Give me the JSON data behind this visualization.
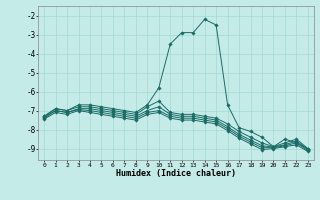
{
  "xlabel": "Humidex (Indice chaleur)",
  "bg_color": "#c5ebe8",
  "grid_color": "#9dd4d0",
  "line_color": "#1a6b65",
  "xlim": [
    -0.5,
    23.5
  ],
  "ylim": [
    -9.6,
    -1.5
  ],
  "yticks": [
    -2,
    -3,
    -4,
    -5,
    -6,
    -7,
    -8,
    -9
  ],
  "xticks": [
    0,
    1,
    2,
    3,
    4,
    5,
    6,
    7,
    8,
    9,
    10,
    11,
    12,
    13,
    14,
    15,
    16,
    17,
    18,
    19,
    20,
    21,
    22,
    23
  ],
  "lines": [
    [
      -7.3,
      -6.9,
      -7.0,
      -6.7,
      -6.7,
      -6.8,
      -6.9,
      -7.0,
      -7.1,
      -6.7,
      -5.8,
      -3.5,
      -2.9,
      -2.9,
      -2.2,
      -2.5,
      -6.7,
      -7.9,
      -8.1,
      -8.4,
      -8.9,
      -8.5,
      -8.7,
      -9.0
    ],
    [
      -7.3,
      -6.9,
      -7.0,
      -6.8,
      -6.8,
      -6.9,
      -7.0,
      -7.1,
      -7.2,
      -6.8,
      -6.5,
      -7.1,
      -7.2,
      -7.2,
      -7.3,
      -7.4,
      -7.7,
      -8.1,
      -8.4,
      -8.7,
      -8.9,
      -8.7,
      -8.5,
      -9.0
    ],
    [
      -7.35,
      -7.0,
      -7.1,
      -6.9,
      -6.9,
      -7.0,
      -7.1,
      -7.2,
      -7.3,
      -7.0,
      -6.8,
      -7.2,
      -7.3,
      -7.3,
      -7.4,
      -7.5,
      -7.85,
      -8.25,
      -8.55,
      -8.85,
      -8.92,
      -8.8,
      -8.6,
      -9.05
    ],
    [
      -7.4,
      -7.0,
      -7.1,
      -6.95,
      -7.0,
      -7.1,
      -7.2,
      -7.3,
      -7.4,
      -7.1,
      -7.0,
      -7.3,
      -7.4,
      -7.4,
      -7.5,
      -7.6,
      -7.95,
      -8.35,
      -8.65,
      -8.95,
      -8.95,
      -8.85,
      -8.7,
      -9.1
    ],
    [
      -7.45,
      -7.1,
      -7.2,
      -7.0,
      -7.1,
      -7.2,
      -7.3,
      -7.4,
      -7.5,
      -7.2,
      -7.1,
      -7.4,
      -7.5,
      -7.5,
      -7.6,
      -7.7,
      -8.05,
      -8.45,
      -8.75,
      -9.05,
      -9.0,
      -8.9,
      -8.8,
      -9.15
    ]
  ]
}
